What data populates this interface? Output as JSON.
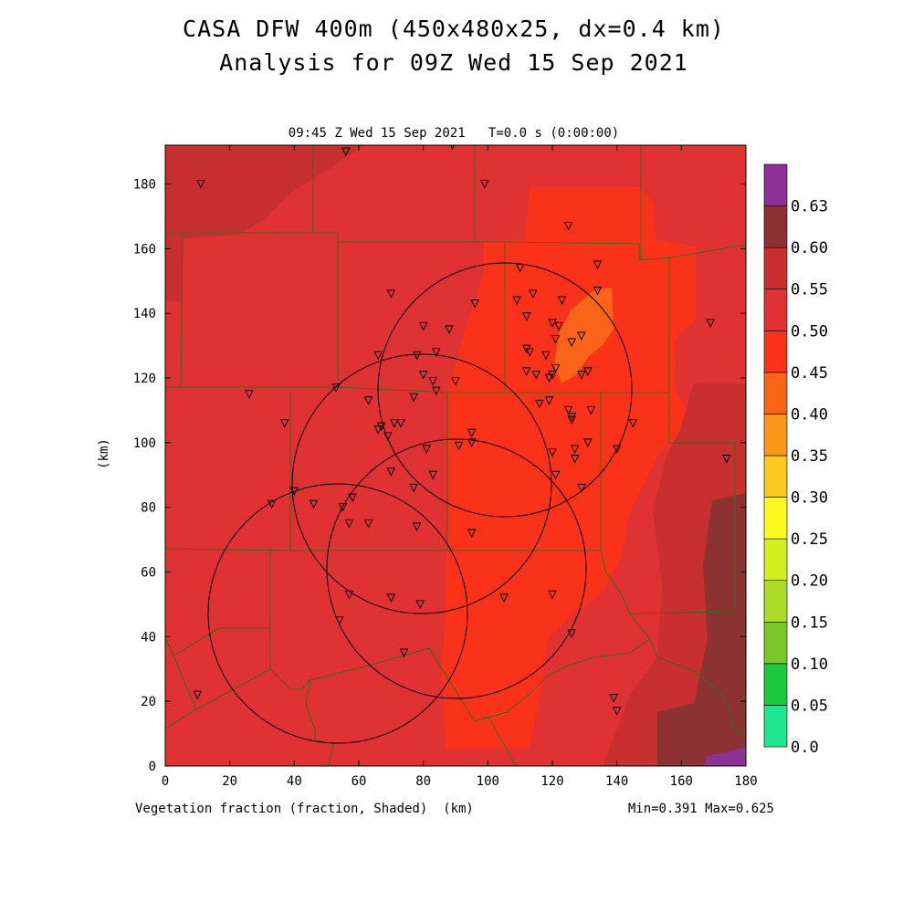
{
  "chart_data": {
    "type": "heatmap",
    "title": "CASA DFW 400m (450x480x25, dx=0.4 km)",
    "subtitle": "Analysis for 09Z Wed 15 Sep 2021",
    "time_label": "09:45 Z Wed 15 Sep 2021   T=0.0 s (0:00:00)",
    "xlabel": "Vegetation fraction (fraction, Shaded)  (km)",
    "ylabel": "(km)",
    "stats": "Min=0.391 Max=0.625",
    "xlim": [
      0,
      180
    ],
    "ylim": [
      0,
      192
    ],
    "x_ticks": [
      "0",
      "20",
      "40",
      "60",
      "80",
      "100",
      "120",
      "140",
      "160",
      "180"
    ],
    "y_ticks": [
      "0",
      "20",
      "40",
      "60",
      "80",
      "100",
      "120",
      "140",
      "160",
      "180"
    ],
    "colorbar": {
      "levels": [
        "0.0",
        "0.05",
        "0.10",
        "0.15",
        "0.20",
        "0.25",
        "0.30",
        "0.35",
        "0.40",
        "0.45",
        "0.50",
        "0.55",
        "0.60",
        "0.63"
      ],
      "colors": [
        "#1ee68c",
        "#1cc83c",
        "#78c828",
        "#aadc28",
        "#d2f01e",
        "#fafa1e",
        "#fac81e",
        "#fa9619",
        "#fa6419",
        "#fa3219",
        "#e03232",
        "#c83030",
        "#8c3232",
        "#8c3296"
      ]
    },
    "fields": [
      {
        "value_range": "0.45-0.50",
        "color": "#e03232"
      },
      {
        "value_range": "0.40-0.45",
        "color": "#fa3219"
      },
      {
        "value_range": "0.35-0.40",
        "color": "#fa6419"
      },
      {
        "value_range": "0.50-0.55",
        "color": "#c83030"
      },
      {
        "value_range": "0.55-0.60",
        "color": "#8c3232"
      },
      {
        "value_range": "0.60-0.63",
        "color": "#8c3296"
      }
    ],
    "radars": [
      {
        "center": [
          104,
          116
        ],
        "radius_km": 39
      },
      {
        "center": [
          79,
          87
        ],
        "radius_km": 40
      },
      {
        "center": [
          88,
          61
        ],
        "radius_km": 40
      },
      {
        "center": [
          53,
          47
        ],
        "radius_km": 40
      }
    ],
    "stations": [
      [
        11,
        180
      ],
      [
        56,
        190
      ],
      [
        89,
        192
      ],
      [
        99,
        180
      ],
      [
        125,
        167
      ],
      [
        110,
        154
      ],
      [
        134,
        155
      ],
      [
        70,
        146
      ],
      [
        109,
        144
      ],
      [
        114,
        146
      ],
      [
        123,
        144
      ],
      [
        134,
        147
      ],
      [
        96,
        143
      ],
      [
        112,
        139
      ],
      [
        80,
        136
      ],
      [
        88,
        135
      ],
      [
        120,
        137
      ],
      [
        122,
        136
      ],
      [
        121,
        132
      ],
      [
        126,
        131
      ],
      [
        129,
        133
      ],
      [
        66,
        127
      ],
      [
        78,
        127
      ],
      [
        84,
        128
      ],
      [
        112,
        129
      ],
      [
        113,
        128
      ],
      [
        118,
        127
      ],
      [
        80,
        121
      ],
      [
        83,
        119
      ],
      [
        90,
        119
      ],
      [
        112,
        122
      ],
      [
        115,
        121
      ],
      [
        119,
        120
      ],
      [
        121,
        123
      ],
      [
        120,
        121
      ],
      [
        129,
        121
      ],
      [
        131,
        122
      ],
      [
        53,
        117
      ],
      [
        77,
        114
      ],
      [
        84,
        116
      ],
      [
        26,
        115
      ],
      [
        63,
        113
      ],
      [
        119,
        113
      ],
      [
        116,
        112
      ],
      [
        125,
        110
      ],
      [
        126,
        108
      ],
      [
        126,
        107
      ],
      [
        132,
        110
      ],
      [
        145,
        106
      ],
      [
        37,
        106
      ],
      [
        67,
        105
      ],
      [
        71,
        106
      ],
      [
        73,
        106
      ],
      [
        69,
        102
      ],
      [
        66,
        104
      ],
      [
        95,
        103
      ],
      [
        95,
        100
      ],
      [
        91,
        99
      ],
      [
        81,
        98
      ],
      [
        120,
        97
      ],
      [
        127,
        98
      ],
      [
        131,
        100
      ],
      [
        140,
        98
      ],
      [
        127,
        95
      ],
      [
        174,
        95
      ],
      [
        70,
        91
      ],
      [
        83,
        90
      ],
      [
        121,
        90
      ],
      [
        129,
        86
      ],
      [
        77,
        86
      ],
      [
        40,
        85
      ],
      [
        33,
        81
      ],
      [
        46,
        81
      ],
      [
        58,
        83
      ],
      [
        55,
        80
      ],
      [
        57,
        75
      ],
      [
        63,
        75
      ],
      [
        78,
        74
      ],
      [
        95,
        72
      ],
      [
        57,
        53
      ],
      [
        70,
        52
      ],
      [
        79,
        50
      ],
      [
        105,
        52
      ],
      [
        120,
        53
      ],
      [
        54,
        45
      ],
      [
        126,
        41
      ],
      [
        74,
        35
      ],
      [
        10,
        22
      ],
      [
        139,
        21
      ],
      [
        140,
        17
      ],
      [
        169,
        137
      ]
    ]
  }
}
